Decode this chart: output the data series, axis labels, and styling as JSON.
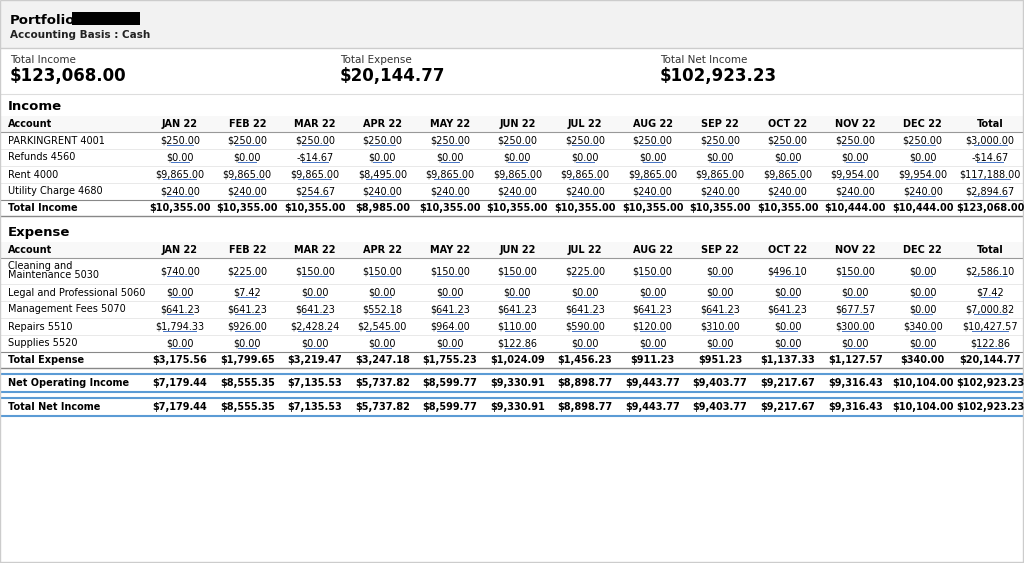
{
  "portfolio_label": "Portfolio:",
  "accounting_basis": "Accounting Basis : Cash",
  "total_income_label": "Total Income",
  "total_income_value": "$123,068.00",
  "total_expense_label": "Total Expense",
  "total_expense_value": "$20,144.77",
  "total_net_income_label": "Total Net Income",
  "total_net_income_value": "$102,923.23",
  "months": [
    "JAN 22",
    "FEB 22",
    "MAR 22",
    "APR 22",
    "MAY 22",
    "JUN 22",
    "JUL 22",
    "AUG 22",
    "SEP 22",
    "OCT 22",
    "NOV 22",
    "DEC 22",
    "Total"
  ],
  "income_section_label": "Income",
  "income_rows": [
    [
      "PARKINGRENT 4001",
      "$250.00",
      "$250.00",
      "$250.00",
      "$250.00",
      "$250.00",
      "$250.00",
      "$250.00",
      "$250.00",
      "$250.00",
      "$250.00",
      "$250.00",
      "$250.00",
      "$3,000.00"
    ],
    [
      "Refunds 4560",
      "$0.00",
      "$0.00",
      "-$14.67",
      "$0.00",
      "$0.00",
      "$0.00",
      "$0.00",
      "$0.00",
      "$0.00",
      "$0.00",
      "$0.00",
      "$0.00",
      "-$14.67"
    ],
    [
      "Rent 4000",
      "$9,865.00",
      "$9,865.00",
      "$9,865.00",
      "$8,495.00",
      "$9,865.00",
      "$9,865.00",
      "$9,865.00",
      "$9,865.00",
      "$9,865.00",
      "$9,865.00",
      "$9,954.00",
      "$9,954.00",
      "$117,188.00"
    ],
    [
      "Utility Charge 4680",
      "$240.00",
      "$240.00",
      "$254.67",
      "$240.00",
      "$240.00",
      "$240.00",
      "$240.00",
      "$240.00",
      "$240.00",
      "$240.00",
      "$240.00",
      "$240.00",
      "$2,894.67"
    ]
  ],
  "income_total_row": [
    "Total Income",
    "$10,355.00",
    "$10,355.00",
    "$10,355.00",
    "$8,985.00",
    "$10,355.00",
    "$10,355.00",
    "$10,355.00",
    "$10,355.00",
    "$10,355.00",
    "$10,355.00",
    "$10,444.00",
    "$10,444.00",
    "$123,068.00"
  ],
  "expense_section_label": "Expense",
  "expense_rows": [
    [
      "Cleaning and\nMaintenance 5030",
      "$740.00",
      "$225.00",
      "$150.00",
      "$150.00",
      "$150.00",
      "$150.00",
      "$225.00",
      "$150.00",
      "$0.00",
      "$496.10",
      "$150.00",
      "$0.00",
      "$2,586.10"
    ],
    [
      "Legal and Professional 5060",
      "$0.00",
      "$7.42",
      "$0.00",
      "$0.00",
      "$0.00",
      "$0.00",
      "$0.00",
      "$0.00",
      "$0.00",
      "$0.00",
      "$0.00",
      "$0.00",
      "$7.42"
    ],
    [
      "Management Fees 5070",
      "$641.23",
      "$641.23",
      "$641.23",
      "$552.18",
      "$641.23",
      "$641.23",
      "$641.23",
      "$641.23",
      "$641.23",
      "$641.23",
      "$677.57",
      "$0.00",
      "$7,000.82"
    ],
    [
      "Repairs 5510",
      "$1,794.33",
      "$926.00",
      "$2,428.24",
      "$2,545.00",
      "$964.00",
      "$110.00",
      "$590.00",
      "$120.00",
      "$310.00",
      "$0.00",
      "$300.00",
      "$340.00",
      "$10,427.57"
    ],
    [
      "Supplies 5520",
      "$0.00",
      "$0.00",
      "$0.00",
      "$0.00",
      "$0.00",
      "$122.86",
      "$0.00",
      "$0.00",
      "$0.00",
      "$0.00",
      "$0.00",
      "$0.00",
      "$122.86"
    ]
  ],
  "expense_total_row": [
    "Total Expense",
    "$3,175.56",
    "$1,799.65",
    "$3,219.47",
    "$3,247.18",
    "$1,755.23",
    "$1,024.09",
    "$1,456.23",
    "$911.23",
    "$951.23",
    "$1,137.33",
    "$1,127.57",
    "$340.00",
    "$20,144.77"
  ],
  "net_operating_row": [
    "Net Operating Income",
    "$7,179.44",
    "$8,555.35",
    "$7,135.53",
    "$5,737.82",
    "$8,599.77",
    "$9,330.91",
    "$8,898.77",
    "$9,443.77",
    "$9,403.77",
    "$9,217.67",
    "$9,316.43",
    "$10,104.00",
    "$102,923.23"
  ],
  "total_net_income_row": [
    "Total Net Income",
    "$7,179.44",
    "$8,555.35",
    "$7,135.53",
    "$5,737.82",
    "$8,599.77",
    "$9,330.91",
    "$8,898.77",
    "$9,443.77",
    "$9,403.77",
    "$9,217.67",
    "$9,316.43",
    "$10,104.00",
    "$102,923.23"
  ]
}
